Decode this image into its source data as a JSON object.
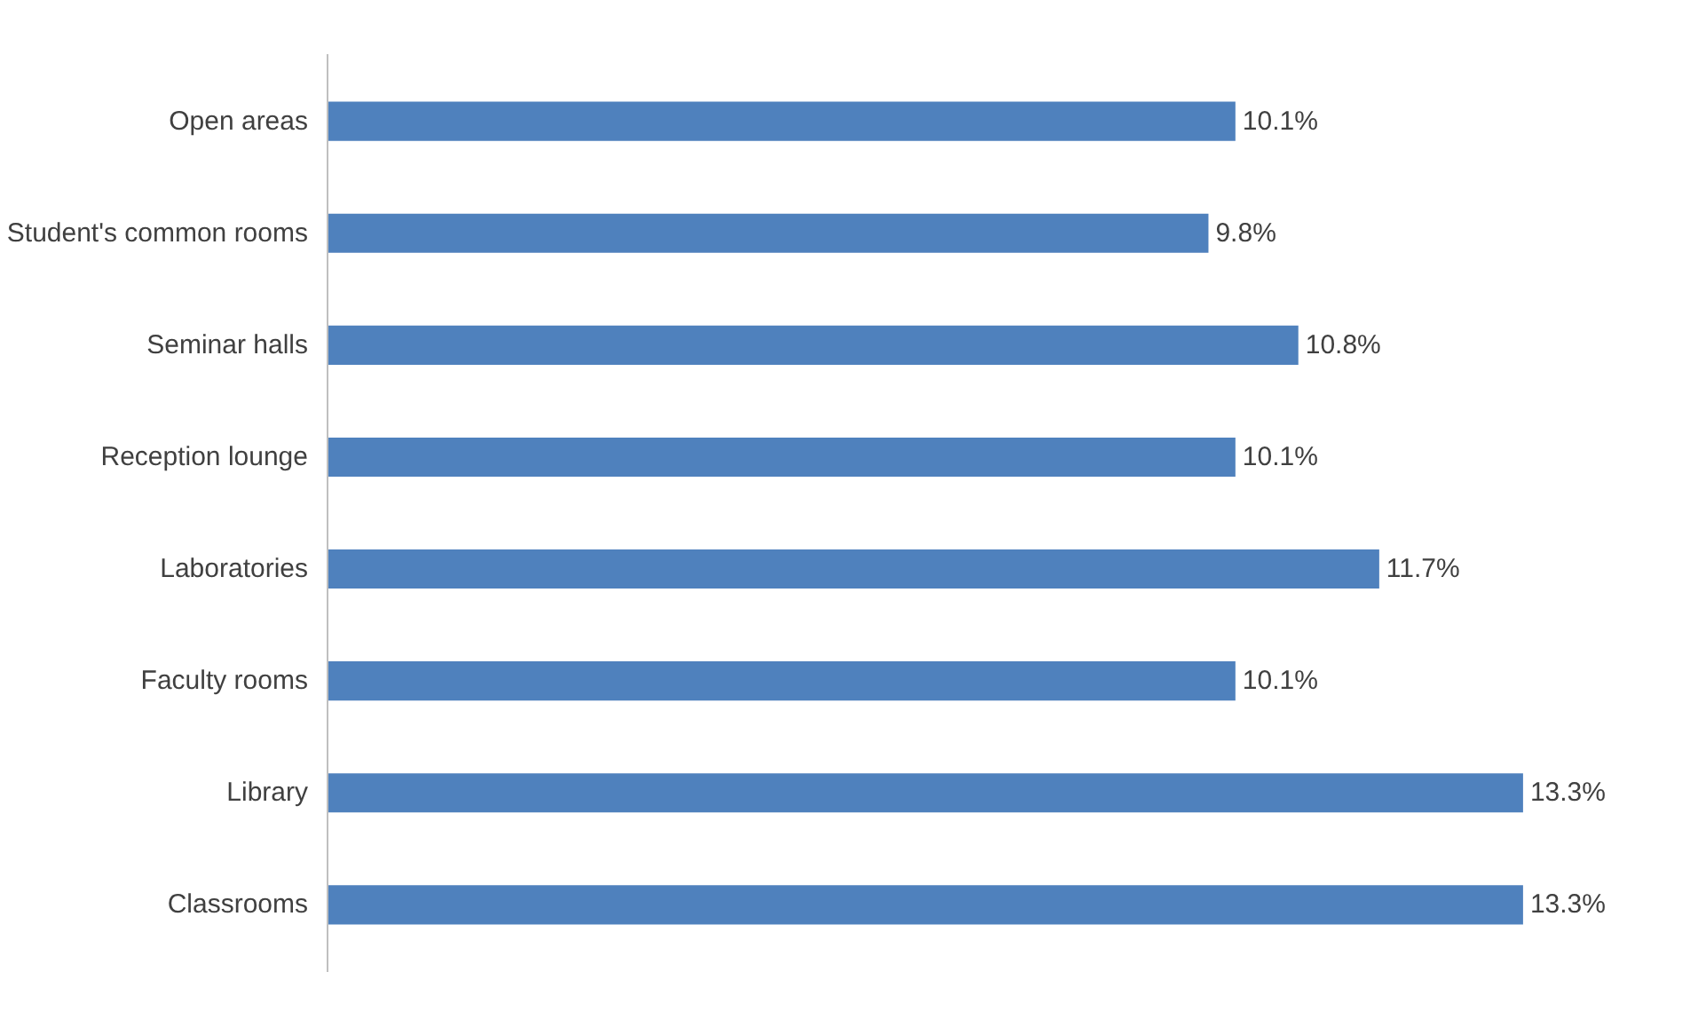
{
  "chart_data": {
    "type": "bar",
    "orientation": "horizontal",
    "categories": [
      "Open areas",
      "Student's common rooms",
      "Seminar halls",
      "Reception lounge",
      "Laboratories",
      "Faculty rooms",
      "Library",
      "Classrooms"
    ],
    "values": [
      10.1,
      9.8,
      10.8,
      10.1,
      11.7,
      10.1,
      13.3,
      13.3
    ],
    "value_labels": [
      "10.1%",
      "9.8%",
      "10.8%",
      "10.1%",
      "11.7%",
      "10.1%",
      "13.3%",
      "13.3%"
    ],
    "color": "#4f81bd"
  }
}
